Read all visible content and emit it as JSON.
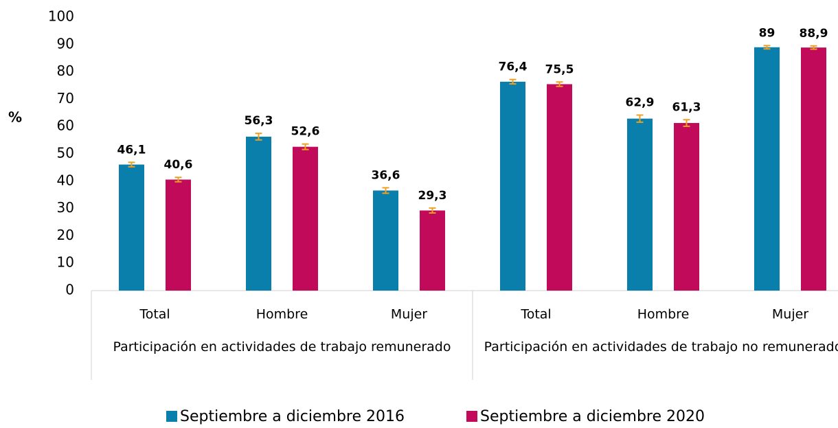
{
  "chart_data": {
    "type": "bar",
    "y_label": "%",
    "categories": [
      "Total",
      "Hombre",
      "Mujer",
      "Total",
      "Hombre",
      "Mujer"
    ],
    "groups": [
      "Participación en actividades de trabajo remunerado",
      "Participación en actividades de trabajo no remunerado"
    ],
    "series": [
      {
        "name": "Septiembre a diciembre 2016",
        "color": "#0b7fab",
        "values": [
          46.1,
          56.3,
          36.6,
          76.4,
          62.9,
          89
        ],
        "value_labels": [
          "46,1",
          "56,3",
          "36,6",
          "76,4",
          "62,9",
          "89"
        ],
        "errors": [
          0.8,
          1.2,
          1.0,
          0.8,
          1.3,
          0.6
        ]
      },
      {
        "name": "Septiembre a diciembre 2020",
        "color": "#c20a5a",
        "values": [
          40.6,
          52.6,
          29.3,
          75.5,
          61.3,
          88.9
        ],
        "value_labels": [
          "40,6",
          "52,6",
          "29,3",
          "75,5",
          "61,3",
          "88,9"
        ],
        "errors": [
          0.8,
          1.0,
          0.9,
          0.8,
          1.2,
          0.6
        ]
      }
    ],
    "error_color": "#f0a020",
    "ylim": [
      0,
      100
    ],
    "yticks": [
      0,
      10,
      20,
      30,
      40,
      50,
      60,
      70,
      80,
      90,
      100
    ],
    "grid": false,
    "legend": "bottom"
  }
}
